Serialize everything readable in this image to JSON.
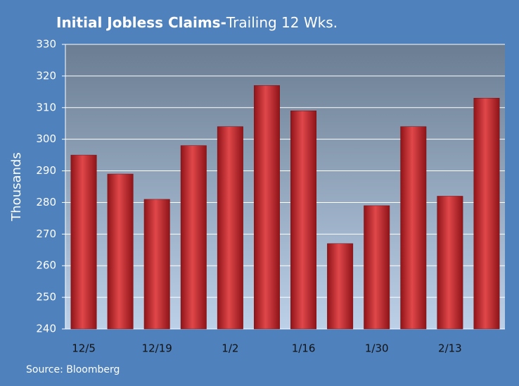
{
  "chart_data": {
    "type": "bar",
    "title": "Initial Jobless Claims-",
    "subtitle": "Trailing 12 Wks.",
    "y_label": "Thousands",
    "source": "Source: Bloomberg",
    "categories": [
      "12/5",
      null,
      "12/19",
      null,
      "1/2",
      null,
      "1/16",
      null,
      "1/30",
      null,
      "2/13",
      null
    ],
    "values": [
      295,
      289,
      281,
      298,
      304,
      317,
      309,
      267,
      279,
      304,
      282,
      313
    ],
    "color": "#c0282c",
    "ylim": [
      240,
      330
    ],
    "yticks": [
      240,
      250,
      260,
      270,
      280,
      290,
      300,
      310,
      320,
      330
    ],
    "grid": true
  }
}
